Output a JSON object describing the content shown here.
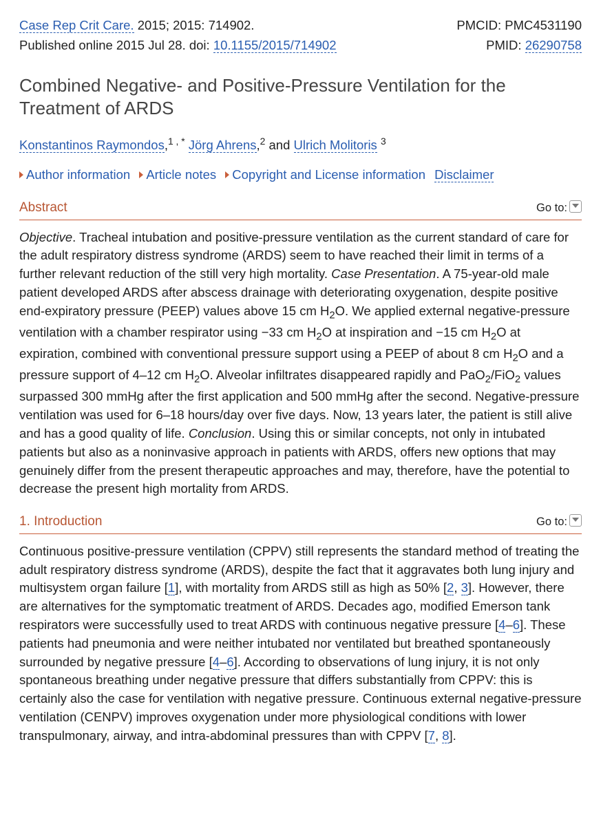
{
  "meta": {
    "journal_link": "Case Rep Crit Care.",
    "journal_after": " 2015; 2015: 714902.",
    "published_line": "Published online 2015 Jul 28. doi: ",
    "doi_link": "10.1155/2015/714902",
    "pmcid_label": "PMCID: ",
    "pmcid_value": "PMC4531190",
    "pmid_label": "PMID: ",
    "pmid_link": "26290758"
  },
  "title": "Combined Negative- and Positive-Pressure Ventilation for the Treatment of ARDS",
  "authors": {
    "a1": "Konstantinos Raymondos",
    "a1_sup": "1 , *",
    "a2": "Jörg Ahrens",
    "a2_sup": "2",
    "sep_and": " and ",
    "a3": "Ulrich Molitoris",
    "a3_sup": "3"
  },
  "expand": {
    "author_info": "Author information",
    "article_notes": "Article notes",
    "license": "Copyright and License information",
    "disclaimer": "Disclaimer"
  },
  "sections": {
    "abstract_title": "Abstract",
    "intro_title": "1. Introduction",
    "goto_label": "Go to:"
  },
  "abstract": {
    "objective_label": "Objective",
    "objective_period": ". ",
    "objective_text": "Tracheal intubation and positive-pressure ventilation as the current standard of care for the adult respiratory distress syndrome (ARDS) seem to have reached their limit in terms of a further relevant reduction of the still very high mortality. ",
    "case_label": "Case Presentation",
    "case_period": ". ",
    "case_text_1": "A 75-year-old male patient developed ARDS after abscess drainage with deteriorating oxygenation, despite positive end-expiratory pressure (PEEP) values above 15 cm H",
    "case_text_2": "O. We applied external negative-pressure ventilation with a chamber respirator using −33 cm H",
    "case_text_3": "O at inspiration and −15 cm H",
    "case_text_4": "O at expiration, combined with conventional pressure support using a PEEP of about 8 cm H",
    "case_text_5": "O and a pressure support of 4–12 cm H",
    "case_text_6": "O. Alveolar infiltrates disappeared rapidly and PaO",
    "case_text_7": "/FiO",
    "case_text_8": " values surpassed 300 mmHg after the first application and 500 mmHg after the second. Negative-pressure ventilation was used for 6–18 hours/day over five days. Now, 13 years later, the patient is still alive and has a good quality of life. ",
    "conclusion_label": "Conclusion",
    "conclusion_period": ". ",
    "conclusion_text": "Using this or similar concepts, not only in intubated patients but also as a noninvasive approach in patients with ARDS, offers new options that may genuinely differ from the present therapeutic approaches and may, therefore, have the potential to decrease the present high mortality from ARDS.",
    "sub_2": "2"
  },
  "intro": {
    "text_1": "Continuous positive-pressure ventilation (CPPV) still represents the standard method of treating the adult respiratory distress syndrome (ARDS), despite the fact that it aggravates both lung injury and multisystem organ failure [",
    "ref_1": "1",
    "text_2": "], with mortality from ARDS still as high as 50% [",
    "ref_2": "2",
    "sep_comma": ", ",
    "ref_3": "3",
    "text_3": "]. However, there are alternatives for the symptomatic treatment of ARDS. Decades ago, modified Emerson tank respirators were successfully used to treat ARDS with continuous negative pressure [",
    "ref_4": "4",
    "sep_dash": "–",
    "ref_6": "6",
    "text_4": "]. These patients had pneumonia and were neither intubated nor ventilated but breathed spontaneously surrounded by negative pressure [",
    "text_5": "]. According to observations of lung injury, it is not only spontaneous breathing under negative pressure that differs substantially from CPPV: this is certainly also the case for ventilation with negative pressure. Continuous external negative-pressure ventilation (CENPV) improves oxygenation under more physiological conditions with lower transpulmonary, airway, and intra-abdominal pressures than with CPPV [",
    "ref_7": "7",
    "ref_8": "8",
    "text_6": "]."
  }
}
